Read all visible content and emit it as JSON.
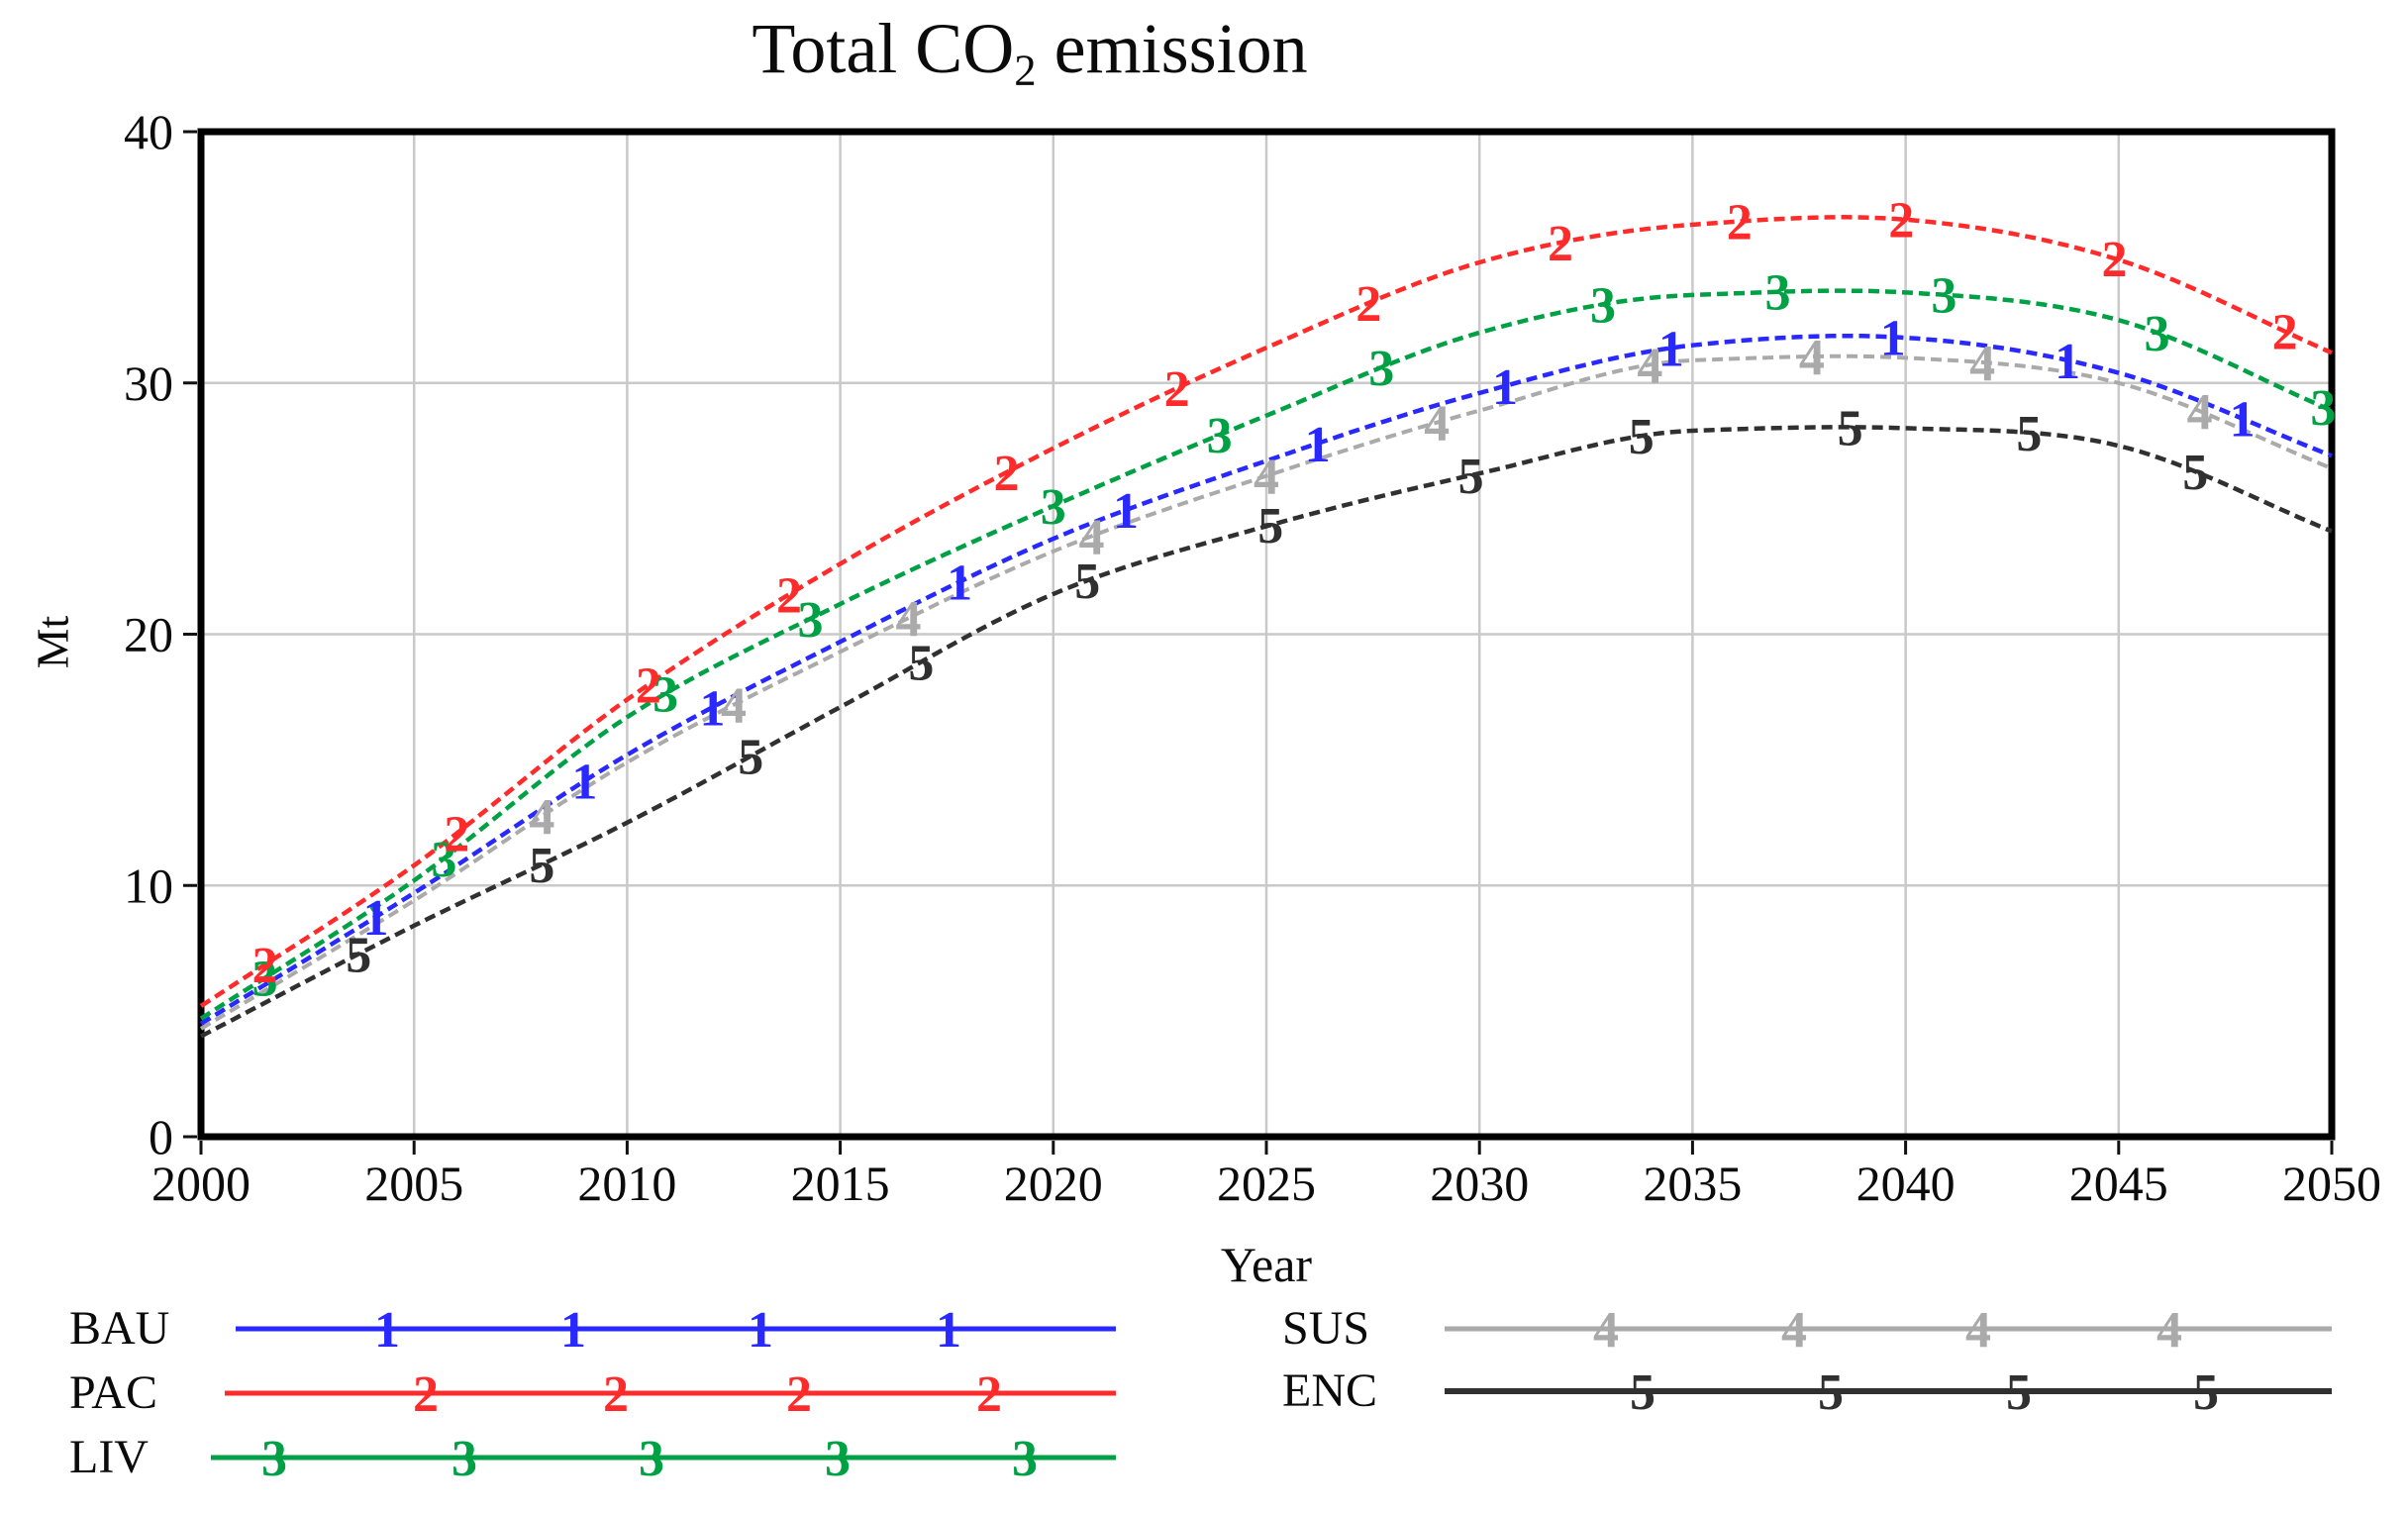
{
  "title": {
    "prefix": "Total CO",
    "subscript": "2",
    "suffix": " emission"
  },
  "axes": {
    "x": {
      "label": "Year",
      "min": 2000,
      "max": 2050,
      "ticks": [
        2000,
        2005,
        2010,
        2015,
        2020,
        2025,
        2030,
        2035,
        2040,
        2045,
        2050
      ]
    },
    "y": {
      "label": "Mt",
      "min": 0,
      "max": 40,
      "ticks": [
        0,
        10,
        20,
        30,
        40
      ]
    }
  },
  "colors": {
    "background": "#ffffff",
    "frame": "#000000",
    "grid": "#c9c9c9",
    "text": "#111111",
    "bau_blue": "#2929ff",
    "pac_red": "#ff2b2b",
    "liv_green": "#00a144",
    "sus_gray": "#aaaaaa",
    "enc_black": "#303030"
  },
  "chart_data": {
    "type": "line",
    "title": "Total CO2 emission",
    "xlabel": "Year",
    "ylabel": "Mt",
    "xlim": [
      2000,
      2050
    ],
    "ylim": [
      0,
      40
    ],
    "grid": true,
    "legend_position": "bottom",
    "x": [
      2000,
      2005,
      2010,
      2015,
      2020,
      2025,
      2030,
      2035,
      2040,
      2045,
      2050
    ],
    "series": [
      {
        "name": "SUS",
        "marker": "4",
        "color": "#aaaaaa",
        "line_width": 4,
        "values": [
          4.3,
          9.4,
          14.9,
          19.3,
          23.3,
          26.3,
          28.9,
          30.9,
          31.0,
          30.0,
          26.6
        ],
        "marker_years": [
          2008.0,
          2012.5,
          2016.6,
          2020.9,
          2025.0,
          2029.0,
          2034.0,
          2037.8,
          2041.8,
          2046.9
        ]
      },
      {
        "name": "BAU",
        "marker": "1",
        "color": "#2929ff",
        "line_width": 4.5,
        "values": [
          4.5,
          9.7,
          15.2,
          19.7,
          23.8,
          26.9,
          29.6,
          31.5,
          31.8,
          30.4,
          27.1
        ],
        "marker_years": [
          2004.1,
          2009.0,
          2012.0,
          2017.8,
          2021.7,
          2026.2,
          2030.6,
          2034.5,
          2039.7,
          2043.8,
          2047.9
        ]
      },
      {
        "name": "LIV",
        "marker": "3",
        "color": "#00a144",
        "line_width": 4.5,
        "values": [
          4.7,
          10.2,
          16.7,
          21.2,
          25.1,
          28.7,
          32.0,
          33.5,
          33.6,
          32.5,
          28.9
        ],
        "marker_years": [
          2001.5,
          2005.7,
          2010.9,
          2014.3,
          2020.0,
          2023.9,
          2027.7,
          2032.9,
          2037.0,
          2040.9,
          2045.9,
          2049.8
        ]
      },
      {
        "name": "PAC",
        "marker": "2",
        "color": "#ff2b2b",
        "line_width": 4.5,
        "values": [
          5.2,
          10.8,
          17.4,
          22.8,
          27.4,
          31.4,
          34.8,
          36.3,
          36.5,
          34.9,
          31.2
        ],
        "marker_years": [
          2001.5,
          2006.0,
          2010.5,
          2013.8,
          2018.9,
          2022.9,
          2027.4,
          2031.9,
          2036.1,
          2039.9,
          2044.9,
          2048.9
        ]
      },
      {
        "name": "ENC",
        "marker": "5",
        "color": "#303030",
        "line_width": 4.5,
        "values": [
          4.0,
          8.4,
          12.5,
          17.1,
          21.6,
          24.3,
          26.4,
          28.1,
          28.2,
          27.5,
          24.1
        ],
        "marker_years": [
          2003.7,
          2008.0,
          2012.9,
          2016.9,
          2020.8,
          2025.1,
          2029.8,
          2033.8,
          2038.7,
          2042.9,
          2046.8
        ]
      }
    ]
  },
  "legend": {
    "left": [
      {
        "name": "BAU",
        "marker": "1"
      },
      {
        "name": "PAC",
        "marker": "2"
      },
      {
        "name": "LIV",
        "marker": "3"
      }
    ],
    "right": [
      {
        "name": "SUS",
        "marker": "4"
      },
      {
        "name": "ENC",
        "marker": "5"
      }
    ]
  }
}
